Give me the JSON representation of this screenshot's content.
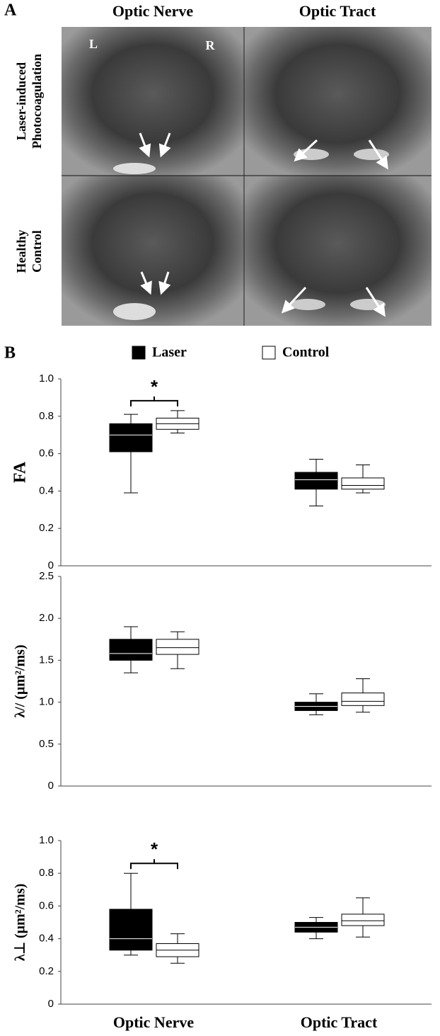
{
  "panel_a": {
    "label": "A",
    "columns": [
      "Optic Nerve",
      "Optic Tract"
    ],
    "rows": [
      [
        "Laser-induced",
        "Photocoagulation"
      ],
      [
        "Healthy",
        "Control"
      ]
    ],
    "side_labels": [
      "L",
      "R"
    ]
  },
  "panel_b": {
    "label": "B"
  },
  "chart_data": [
    {
      "type": "box",
      "y_label": "FA",
      "annotation": "*",
      "ylim": [
        0,
        1
      ],
      "yticks": [
        0,
        0.2,
        0.4,
        0.6,
        0.8,
        {
          "value": 1,
          "label": "1.0"
        }
      ],
      "series": [
        {
          "name": "Laser",
          "color": "#000000",
          "values": [
            {
              "min": 0.39,
              "q1": 0.61,
              "median": 0.7,
              "q3": 0.76,
              "max": 0.81
            },
            {
              "min": 0.32,
              "q1": 0.41,
              "median": 0.46,
              "q3": 0.5,
              "max": 0.57
            }
          ]
        },
        {
          "name": "Control",
          "color": "#ffffff",
          "values": [
            {
              "min": 0.71,
              "q1": 0.73,
              "median": 0.76,
              "q3": 0.79,
              "max": 0.83
            },
            {
              "min": 0.39,
              "q1": 0.41,
              "median": 0.43,
              "q3": 0.47,
              "max": 0.54
            }
          ]
        }
      ]
    },
    {
      "type": "box",
      "y_label": "λ// (μm²/ms)",
      "ylim": [
        0,
        2.5
      ],
      "yticks": [
        0,
        0.5,
        {
          "value": 1,
          "label": "1.0"
        },
        1.5,
        {
          "value": 2,
          "label": "2.0"
        },
        2.5
      ],
      "series": [
        {
          "color": "#000000",
          "values": [
            {
              "min": 1.35,
              "q1": 1.5,
              "median": 1.58,
              "q3": 1.75,
              "max": 1.9
            },
            {
              "min": 0.85,
              "q1": 0.9,
              "median": 0.95,
              "q3": 1.0,
              "max": 1.1
            }
          ]
        },
        {
          "color": "#ffffff",
          "values": [
            {
              "min": 1.4,
              "q1": 1.57,
              "median": 1.65,
              "q3": 1.75,
              "max": 1.84
            },
            {
              "min": 0.88,
              "q1": 0.96,
              "median": 1.01,
              "q3": 1.11,
              "max": 1.28
            }
          ]
        }
      ]
    },
    {
      "type": "box",
      "y_label": "λ⊥ (μm²/ms)",
      "annotation": "*",
      "categories": [
        "Optic Nerve",
        "Optic Tract"
      ],
      "ylim": [
        0,
        1
      ],
      "yticks": [
        0,
        0.2,
        0.4,
        0.6,
        0.8,
        {
          "value": 1,
          "label": "1.0"
        }
      ],
      "series": [
        {
          "color": "#000000",
          "values": [
            {
              "min": 0.3,
              "q1": 0.33,
              "median": 0.4,
              "q3": 0.58,
              "max": 0.8
            },
            {
              "min": 0.4,
              "q1": 0.44,
              "median": 0.47,
              "q3": 0.5,
              "max": 0.53
            }
          ]
        },
        {
          "color": "#ffffff",
          "values": [
            {
              "min": 0.25,
              "q1": 0.29,
              "median": 0.33,
              "q3": 0.37,
              "max": 0.43
            },
            {
              "min": 0.41,
              "q1": 0.48,
              "median": 0.51,
              "q3": 0.55,
              "max": 0.65
            }
          ]
        }
      ]
    }
  ]
}
